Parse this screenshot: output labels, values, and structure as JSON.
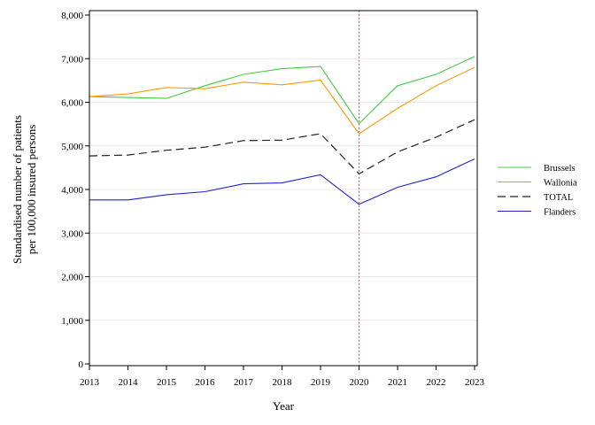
{
  "chart_data": {
    "type": "line",
    "xlabel": "Year",
    "ylabel_lines": [
      "Standardised number of patients",
      "per 100,000 insured persons"
    ],
    "x": [
      2013,
      2014,
      2015,
      2016,
      2017,
      2018,
      2019,
      2020,
      2021,
      2022,
      2023
    ],
    "x_tick_labels": [
      "2013",
      "2014",
      "2015",
      "2016",
      "2017",
      "2018",
      "2019",
      "2020",
      "2021",
      "2022",
      "2023"
    ],
    "ylim": [
      0,
      8000
    ],
    "y_ticks": [
      0,
      1000,
      2000,
      3000,
      4000,
      5000,
      6000,
      7000,
      8000
    ],
    "y_tick_labels": [
      "0",
      "1,000",
      "2,000",
      "3,000",
      "4,000",
      "5,000",
      "6,000",
      "7,000",
      "8,000"
    ],
    "grid": "horizontal",
    "reference_line_x": 2020,
    "legend_position": "right",
    "series": [
      {
        "name": "Brussels",
        "color": "#44cc44",
        "dash": "solid",
        "values": [
          6130,
          6110,
          6090,
          6380,
          6640,
          6770,
          6820,
          5510,
          6380,
          6640,
          7050
        ]
      },
      {
        "name": "Wallonia",
        "color": "#ff9900",
        "dash": "solid",
        "values": [
          6130,
          6190,
          6340,
          6310,
          6460,
          6400,
          6510,
          5280,
          5860,
          6380,
          6800
        ]
      },
      {
        "name": "TOTAL",
        "color": "#222222",
        "dash": "dashed",
        "values": [
          4770,
          4790,
          4900,
          4970,
          5120,
          5130,
          5280,
          4360,
          4860,
          5200,
          5600
        ]
      },
      {
        "name": "Flanders",
        "color": "#2222cc",
        "dash": "solid",
        "values": [
          3760,
          3760,
          3880,
          3950,
          4130,
          4150,
          4340,
          3660,
          4050,
          4290,
          4700
        ]
      }
    ]
  }
}
